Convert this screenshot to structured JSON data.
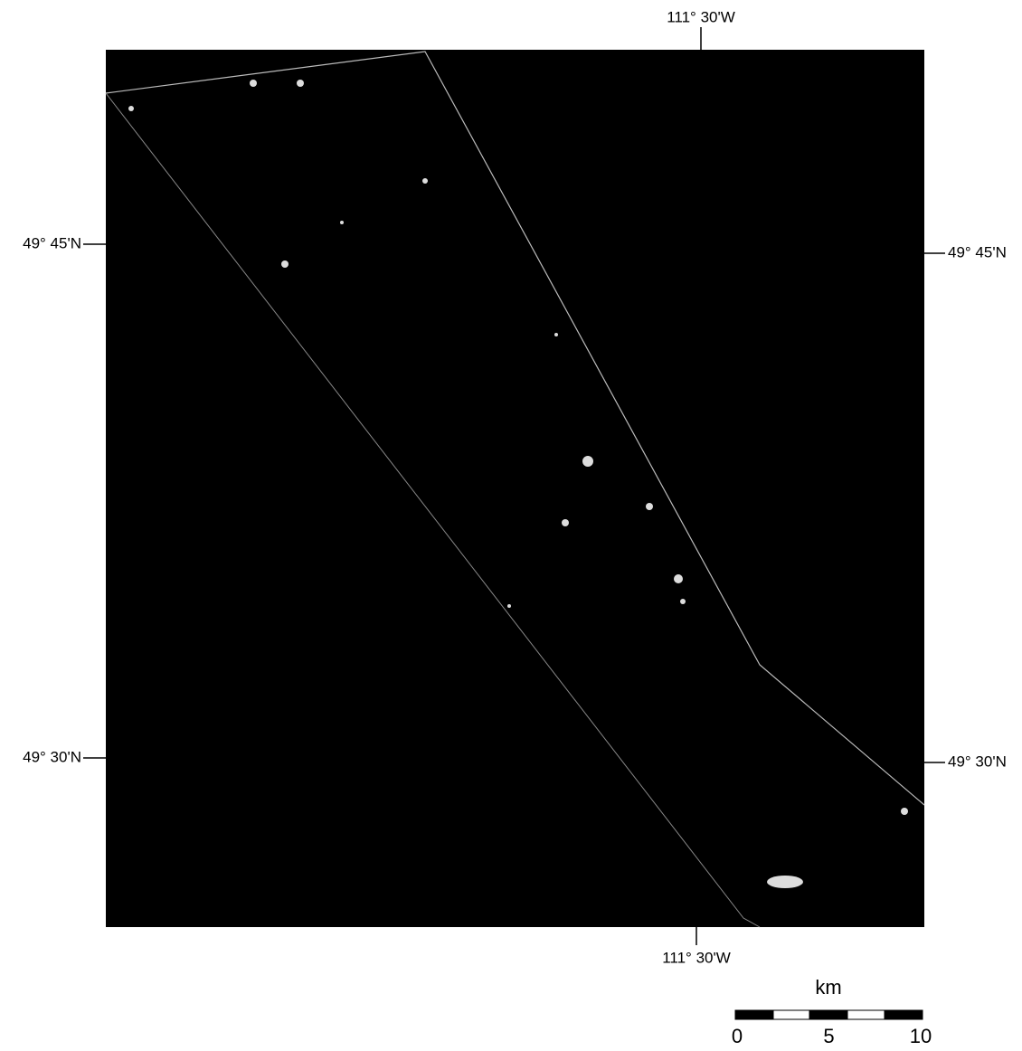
{
  "map": {
    "labels": {
      "top": "111° 30'W",
      "bottom": "111° 30'W",
      "left": [
        "49° 45'N",
        "49° 30'N"
      ],
      "right": [
        "49° 45'N",
        "49° 30'N"
      ]
    },
    "scale_bar": {
      "unit": "km",
      "ticks": [
        0,
        5,
        10
      ]
    }
  }
}
